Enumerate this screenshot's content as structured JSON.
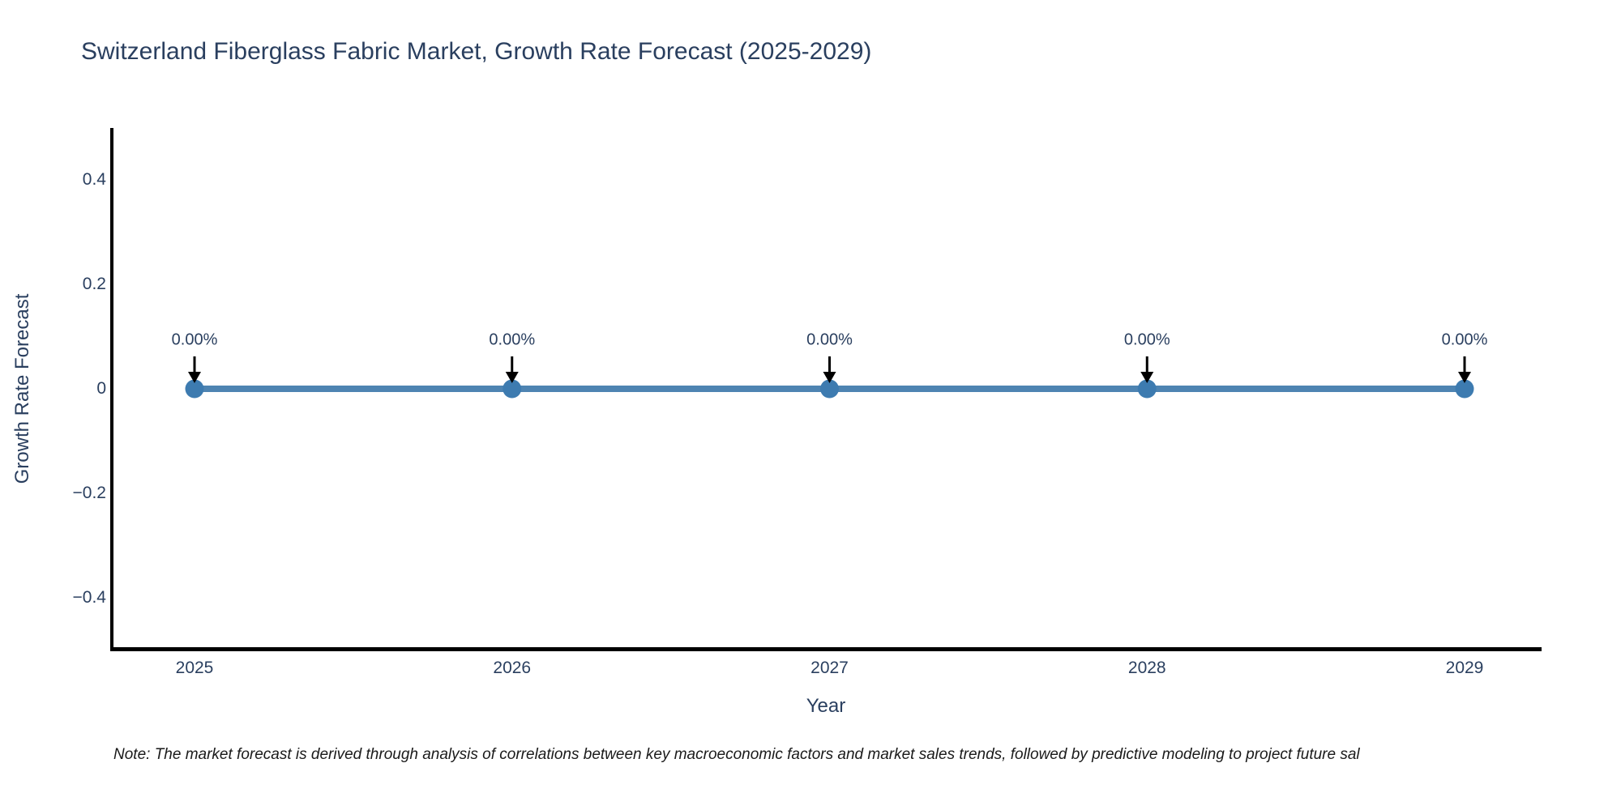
{
  "chart": {
    "title": "Switzerland Fiberglass Fabric Market, Growth Rate Forecast (2025-2029)",
    "note": "Note: The market forecast is derived through analysis of correlations between key macroeconomic factors and market sales trends, followed by predictive modeling to project future sal"
  },
  "colors": {
    "background": "#ffffff",
    "line": "#4e84b2",
    "marker": "#3d7bb0",
    "axis": "#000000",
    "text": "#2a3f5f",
    "annotation_arrow": "#000000",
    "note": "#1a1a1a"
  },
  "chart_data": {
    "type": "line",
    "title": "Switzerland Fiberglass Fabric Market, Growth Rate Forecast (2025-2029)",
    "xlabel": "Year",
    "ylabel": "Growth Rate Forecast",
    "x": [
      2025,
      2026,
      2027,
      2028,
      2029
    ],
    "series": [
      {
        "name": "Growth Rate Forecast",
        "values": [
          0,
          0,
          0,
          0,
          0
        ]
      }
    ],
    "point_labels": [
      "0.00%",
      "0.00%",
      "0.00%",
      "0.00%",
      "0.00%"
    ],
    "xtick_labels": [
      "2025",
      "2026",
      "2027",
      "2028",
      "2029"
    ],
    "ytick_values": [
      0.4,
      0.2,
      0,
      -0.2,
      -0.4
    ],
    "ytick_labels": [
      "0.4",
      "0.2",
      "0",
      "−0.2",
      "−0.4"
    ],
    "ylim": [
      -0.5,
      0.5
    ],
    "xlim": [
      2024.7,
      2029.2
    ],
    "grid": false,
    "legend": false,
    "annotation_style": "down-arrow"
  }
}
